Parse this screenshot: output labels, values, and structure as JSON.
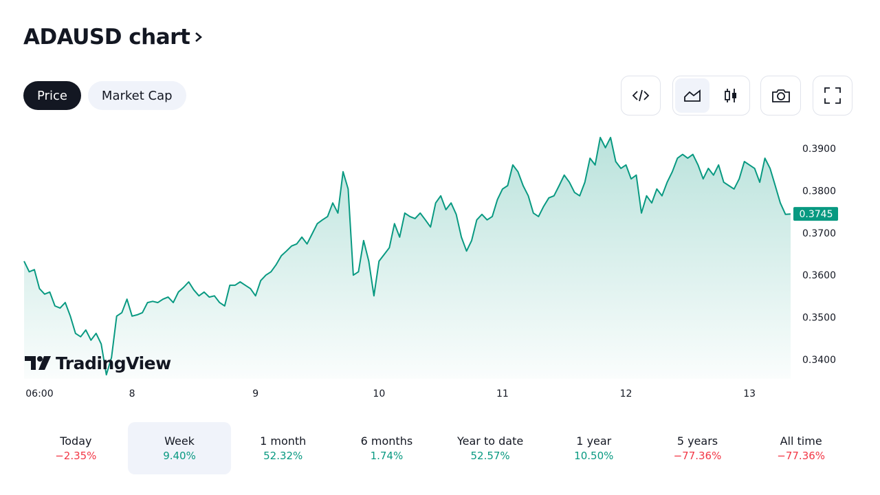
{
  "header": {
    "title": "ADAUSD chart"
  },
  "tabs": [
    {
      "label": "Price",
      "active": true
    },
    {
      "label": "Market Cap",
      "active": false
    }
  ],
  "chart_data": {
    "type": "area",
    "categories": [
      null,
      null,
      null,
      "06:00",
      null,
      null,
      null,
      null,
      null,
      null,
      null,
      null,
      null,
      null,
      null,
      null,
      null,
      null,
      null,
      null,
      null,
      "8",
      null,
      null,
      null,
      null,
      null,
      null,
      null,
      null,
      null,
      null,
      null,
      null,
      null,
      null,
      null,
      null,
      null,
      null,
      null,
      null,
      null,
      null,
      null,
      "9",
      null,
      null,
      null,
      null,
      null,
      null,
      null,
      null,
      null,
      null,
      null,
      null,
      null,
      null,
      null,
      null,
      null,
      null,
      null,
      null,
      null,
      null,
      null,
      "10",
      null,
      null,
      null,
      null,
      null,
      null,
      null,
      null,
      null,
      null,
      null,
      null,
      null,
      null,
      null,
      null,
      null,
      null,
      null,
      null,
      null,
      null,
      null,
      "11",
      null,
      null,
      null,
      null,
      null,
      null,
      null,
      null,
      null,
      null,
      null,
      null,
      null,
      null,
      null,
      null,
      null,
      null,
      null,
      null,
      null,
      null,
      null,
      "12",
      null,
      null,
      null,
      null,
      null,
      null,
      null,
      null,
      null,
      null,
      null,
      null,
      null,
      null,
      null,
      null,
      null,
      null,
      null,
      null,
      null,
      null,
      null,
      "13",
      null,
      null,
      null,
      null,
      null,
      null,
      null,
      null
    ],
    "values": [
      0.3633,
      0.3608,
      0.3613,
      0.3568,
      0.3555,
      0.356,
      0.3527,
      0.3522,
      0.3535,
      0.3503,
      0.3462,
      0.3454,
      0.347,
      0.3446,
      0.3462,
      0.3437,
      0.3364,
      0.3405,
      0.3503,
      0.3511,
      0.3543,
      0.3503,
      0.3506,
      0.3511,
      0.3535,
      0.3538,
      0.3535,
      0.3543,
      0.3548,
      0.3535,
      0.356,
      0.3571,
      0.3584,
      0.3565,
      0.3551,
      0.356,
      0.3548,
      0.3551,
      0.3535,
      0.3527,
      0.3576,
      0.3576,
      0.3584,
      0.3576,
      0.3568,
      0.3551,
      0.3587,
      0.36,
      0.3608,
      0.3625,
      0.3646,
      0.3657,
      0.3669,
      0.3674,
      0.369,
      0.3674,
      0.3698,
      0.3722,
      0.3731,
      0.3739,
      0.3771,
      0.3747,
      0.3845,
      0.3804,
      0.36,
      0.3608,
      0.3682,
      0.3633,
      0.3551,
      0.3633,
      0.3649,
      0.3665,
      0.3722,
      0.369,
      0.3747,
      0.3739,
      0.3734,
      0.3747,
      0.3731,
      0.3714,
      0.3771,
      0.3788,
      0.3755,
      0.3771,
      0.3744,
      0.369,
      0.3657,
      0.3682,
      0.3731,
      0.3744,
      0.3731,
      0.3739,
      0.3779,
      0.3804,
      0.3812,
      0.3861,
      0.3845,
      0.3812,
      0.3788,
      0.3747,
      0.3739,
      0.3763,
      0.3783,
      0.3788,
      0.3812,
      0.3837,
      0.382,
      0.3796,
      0.3788,
      0.382,
      0.3877,
      0.3861,
      0.3926,
      0.3902,
      0.3926,
      0.3869,
      0.3853,
      0.3861,
      0.3828,
      0.3837,
      0.3747,
      0.3788,
      0.3771,
      0.3804,
      0.3788,
      0.382,
      0.3845,
      0.3877,
      0.3886,
      0.3877,
      0.3886,
      0.3861,
      0.3828,
      0.3853,
      0.3837,
      0.3861,
      0.382,
      0.3812,
      0.3804,
      0.3828,
      0.3869,
      0.3861,
      0.3853,
      0.382,
      0.3877,
      0.3853,
      0.3812,
      0.3771,
      0.3744,
      0.3745
    ],
    "color": "#089981",
    "ylim": [
      0.3355,
      0.395
    ],
    "yticks": [
      {
        "value": 0.34,
        "label": "0.3400"
      },
      {
        "value": 0.35,
        "label": "0.3500"
      },
      {
        "value": 0.36,
        "label": "0.3600"
      },
      {
        "value": 0.37,
        "label": "0.3700"
      },
      {
        "value": 0.38,
        "label": "0.3800"
      },
      {
        "value": 0.39,
        "label": "0.3900"
      }
    ],
    "last_value": 0.3745,
    "logo": "TradingView"
  },
  "periods": [
    {
      "label": "Today",
      "change": "−2.35%",
      "color": "#f23645",
      "selected": false
    },
    {
      "label": "Week",
      "change": "9.40%",
      "color": "#089981",
      "selected": true
    },
    {
      "label": "1 month",
      "change": "52.32%",
      "color": "#089981",
      "selected": false
    },
    {
      "label": "6 months",
      "change": "1.74%",
      "color": "#089981",
      "selected": false
    },
    {
      "label": "Year to date",
      "change": "52.57%",
      "color": "#089981",
      "selected": false
    },
    {
      "label": "1 year",
      "change": "10.50%",
      "color": "#089981",
      "selected": false
    },
    {
      "label": "5 years",
      "change": "−77.36%",
      "color": "#f23645",
      "selected": false
    },
    {
      "label": "All time",
      "change": "−77.36%",
      "color": "#f23645",
      "selected": false
    }
  ]
}
